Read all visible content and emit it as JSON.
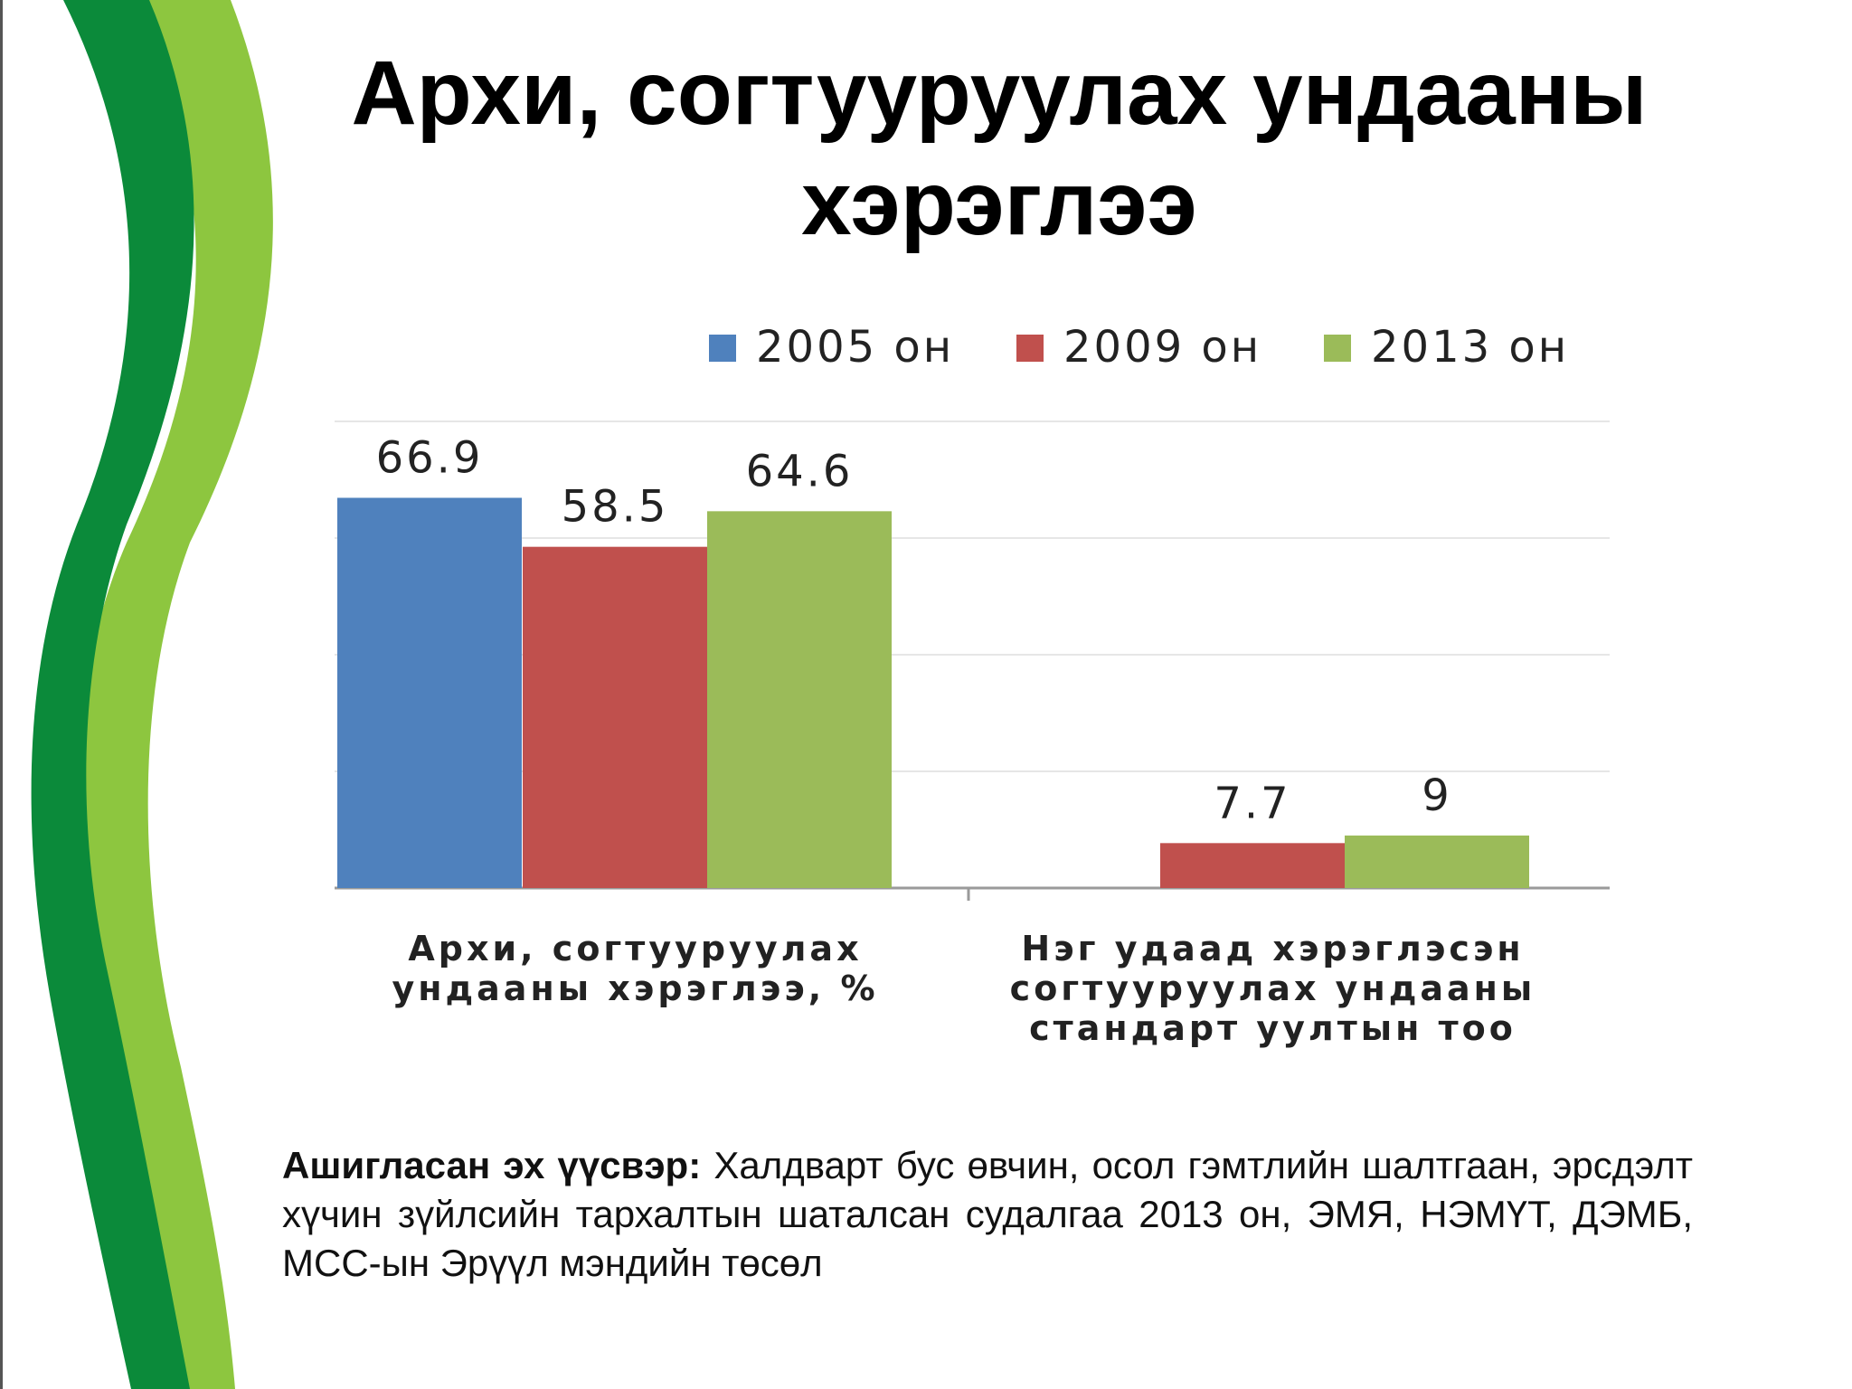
{
  "slide": {
    "title_line1": "Архи, согтууруулах ундааны",
    "title_line2": "хэрэглээ",
    "source_label": "Ашигласан эх үүсвэр:",
    "source_text": "Халдварт бус өвчин, осол гэмтлийн шалтгаан, эрсдэлт хүчин зүйлсийн тархалтын шаталсан судалгаа 2013 он, ЭМЯ, НЭМҮТ, ДЭМБ, МСС-ын Эрүүл мэндийн төсөл"
  },
  "chart_data": {
    "type": "bar",
    "categories": [
      [
        "Архи, согтууруулах",
        "ундааны хэрэглээ, %"
      ],
      [
        "Нэг удаад хэрэглэсэн",
        "согтууруулах ундааны",
        "стандарт уултын тоо"
      ]
    ],
    "series": [
      {
        "name": "2005 он",
        "color": "#4f81bd",
        "values": [
          66.9,
          null
        ]
      },
      {
        "name": "2009 он",
        "color": "#c0504d",
        "values": [
          58.5,
          7.7
        ]
      },
      {
        "name": "2013 он",
        "color": "#9bbb59",
        "values": [
          64.6,
          9
        ]
      }
    ],
    "ylim": [
      0,
      80
    ],
    "grid": true,
    "legend": "top"
  },
  "colors": {
    "deco_dark_green": "#0b8a3a",
    "deco_light_green": "#8dc63f"
  }
}
